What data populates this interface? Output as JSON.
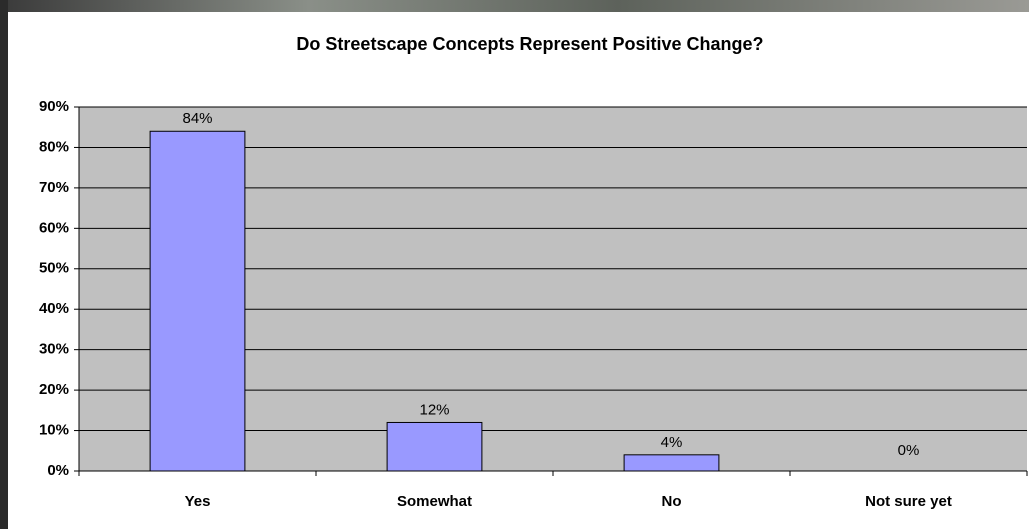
{
  "chart_data": {
    "type": "bar",
    "title": "Do Streetscape Concepts Represent Positive Change?",
    "categories": [
      "Yes",
      "Somewhat",
      "No",
      "Not sure yet"
    ],
    "values": [
      84,
      12,
      4,
      0
    ],
    "value_labels": [
      "84%",
      "12%",
      "4%",
      "0%"
    ],
    "color": "#9999ff",
    "ylim": [
      0,
      90
    ],
    "yticks": [
      {
        "value": 0,
        "label": "0%"
      },
      {
        "value": 10,
        "label": "10%"
      },
      {
        "value": 20,
        "label": "20%"
      },
      {
        "value": 30,
        "label": "30%"
      },
      {
        "value": 40,
        "label": "40%"
      },
      {
        "value": 50,
        "label": "50%"
      },
      {
        "value": 60,
        "label": "60%"
      },
      {
        "value": 70,
        "label": "70%"
      },
      {
        "value": 80,
        "label": "80%"
      },
      {
        "value": 90,
        "label": "90%"
      }
    ],
    "grid": true
  }
}
